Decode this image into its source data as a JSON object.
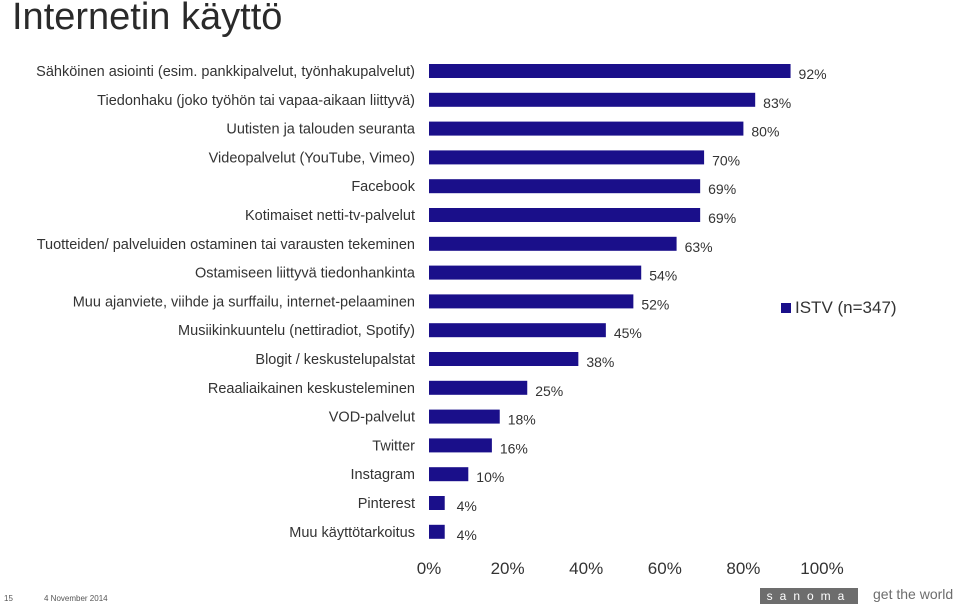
{
  "slide": {
    "title": "Internetin käyttö",
    "number": "15",
    "date": "4 November 2014",
    "brand": "sanoma",
    "tagline": "get the world"
  },
  "colors": {
    "bar": "#1a0f8a",
    "text": "#333333"
  },
  "chart_data": {
    "type": "bar",
    "orientation": "horizontal",
    "categories": [
      "Sähköinen asiointi (esim. pankkipalvelut, työnhakupalvelut)",
      "Tiedonhaku (joko työhön tai vapaa-aikaan liittyvä)",
      "Uutisten ja talouden seuranta",
      "Videopalvelut (YouTube, Vimeo)",
      "Facebook",
      "Kotimaiset netti-tv-palvelut",
      "Tuotteiden/ palveluiden ostaminen tai varausten tekeminen",
      "Ostamiseen liittyvä tiedonhankinta",
      "Muu ajanviete, viihde ja surffailu, internet-pelaaminen",
      "Musiikinkuuntelu (nettiradiot, Spotify)",
      "Blogit / keskustelupalstat",
      "Reaaliaikainen keskusteleminen",
      "VOD-palvelut",
      "Twitter",
      "Instagram",
      "Pinterest",
      "Muu käyttötarkoitus"
    ],
    "series": [
      {
        "name": "ISTV (n=347)",
        "values": [
          92,
          83,
          80,
          70,
          69,
          69,
          63,
          54,
          52,
          45,
          38,
          25,
          18,
          16,
          10,
          4,
          4
        ],
        "labels": [
          "92%",
          "83%",
          "80%",
          "70%",
          "69%",
          "69%",
          "63%",
          "54%",
          "52%",
          "45%",
          "38%",
          "25%",
          "18%",
          "16%",
          "10%",
          "4%",
          "4%"
        ]
      }
    ],
    "xlim": [
      0,
      100
    ],
    "xticks": [
      "0%",
      "20%",
      "40%",
      "60%",
      "80%",
      "100%"
    ],
    "grid": false,
    "legend": "right"
  }
}
